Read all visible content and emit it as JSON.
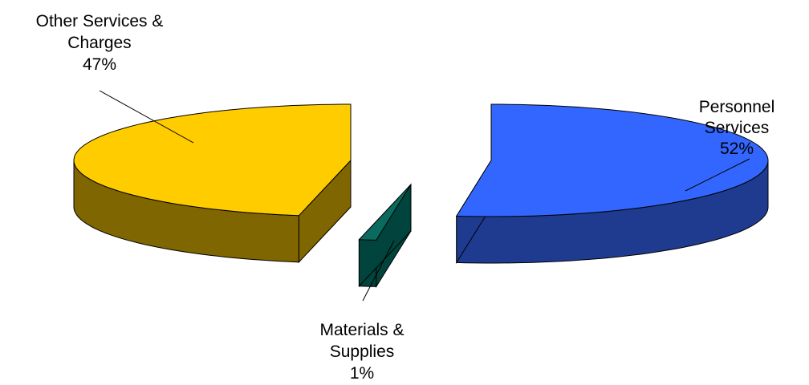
{
  "chart_data": {
    "type": "pie",
    "style": "3d-exploded",
    "title": "",
    "slices": [
      {
        "name_lines": [
          "Personnel",
          "Services"
        ],
        "label": "52%",
        "value": 52,
        "top_color": "#3366ff",
        "side_color": "#1f3b8f"
      },
      {
        "name_lines": [
          "Materials &",
          "Supplies"
        ],
        "label": "1%",
        "value": 1,
        "top_color": "#0a6a5e",
        "side_color": "#00443d"
      },
      {
        "name_lines": [
          "Other Services &",
          "Charges"
        ],
        "label": "47%",
        "value": 47,
        "top_color": "#ffcc00",
        "side_color": "#806600"
      }
    ]
  }
}
